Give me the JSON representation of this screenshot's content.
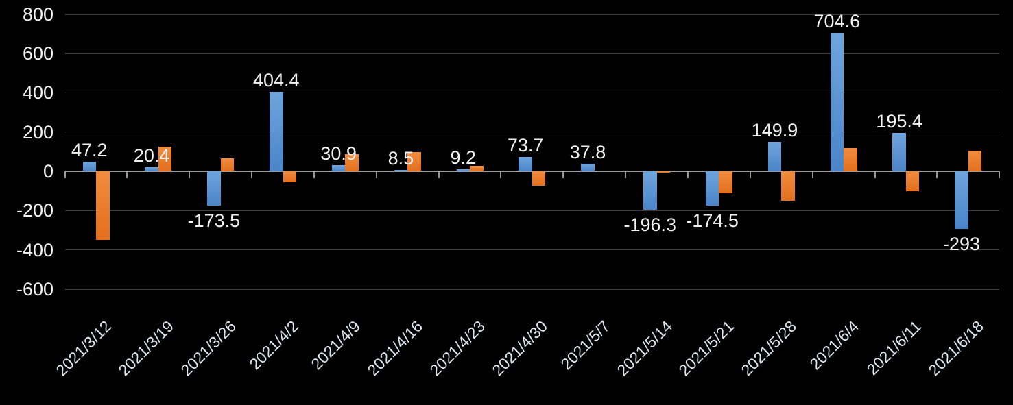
{
  "chart_data": {
    "type": "bar",
    "title": "",
    "xlabel": "",
    "ylabel": "",
    "categories": [
      "2021/3/12",
      "2021/3/19",
      "2021/3/26",
      "2021/4/2",
      "2021/4/9",
      "2021/4/16",
      "2021/4/23",
      "2021/4/30",
      "2021/5/7",
      "2021/5/14",
      "2021/5/21",
      "2021/5/28",
      "2021/6/4",
      "2021/6/11",
      "2021/6/18"
    ],
    "series": [
      {
        "name": "blue-series",
        "color": "#5B9BD5",
        "color_light": "#6FA5DE",
        "color_dark": "#4A84C8",
        "values": [
          47.2,
          20.4,
          -173.5,
          404.4,
          30.9,
          8.5,
          9.2,
          73.7,
          37.8,
          -196.3,
          -174.5,
          149.9,
          704.6,
          195.4,
          -293
        ],
        "data_labels": [
          "47.2",
          "20.4",
          "-173.5",
          "404.4",
          "30.9",
          "8.5",
          "9.2",
          "73.7",
          "37.8",
          "-196.3",
          "-174.5",
          "149.9",
          "704.6",
          "195.4",
          "-293"
        ]
      },
      {
        "name": "orange-series",
        "color": "#ED7D31",
        "color_light": "#F18C3F",
        "color_dark": "#E36F1E",
        "values": [
          -348,
          126,
          68,
          -57,
          88,
          98,
          29,
          -73,
          0,
          -7,
          -110,
          -150,
          118,
          -100,
          105
        ],
        "data_labels": []
      }
    ],
    "y_ticks": [
      800,
      600,
      400,
      200,
      0,
      -200,
      -400,
      -600
    ],
    "y_tick_labels": [
      "800",
      "600",
      "400",
      "200",
      "0",
      "-200",
      "-400",
      "-600"
    ],
    "ylim": [
      -600,
      800
    ],
    "grid": true,
    "legend": "none",
    "background_color": "#000000",
    "text_color": "#F2F2F2",
    "x_label_color": "#DCE6F1",
    "axis_color": "#9B9B9B",
    "gridline_color": "#3A3A3A"
  }
}
